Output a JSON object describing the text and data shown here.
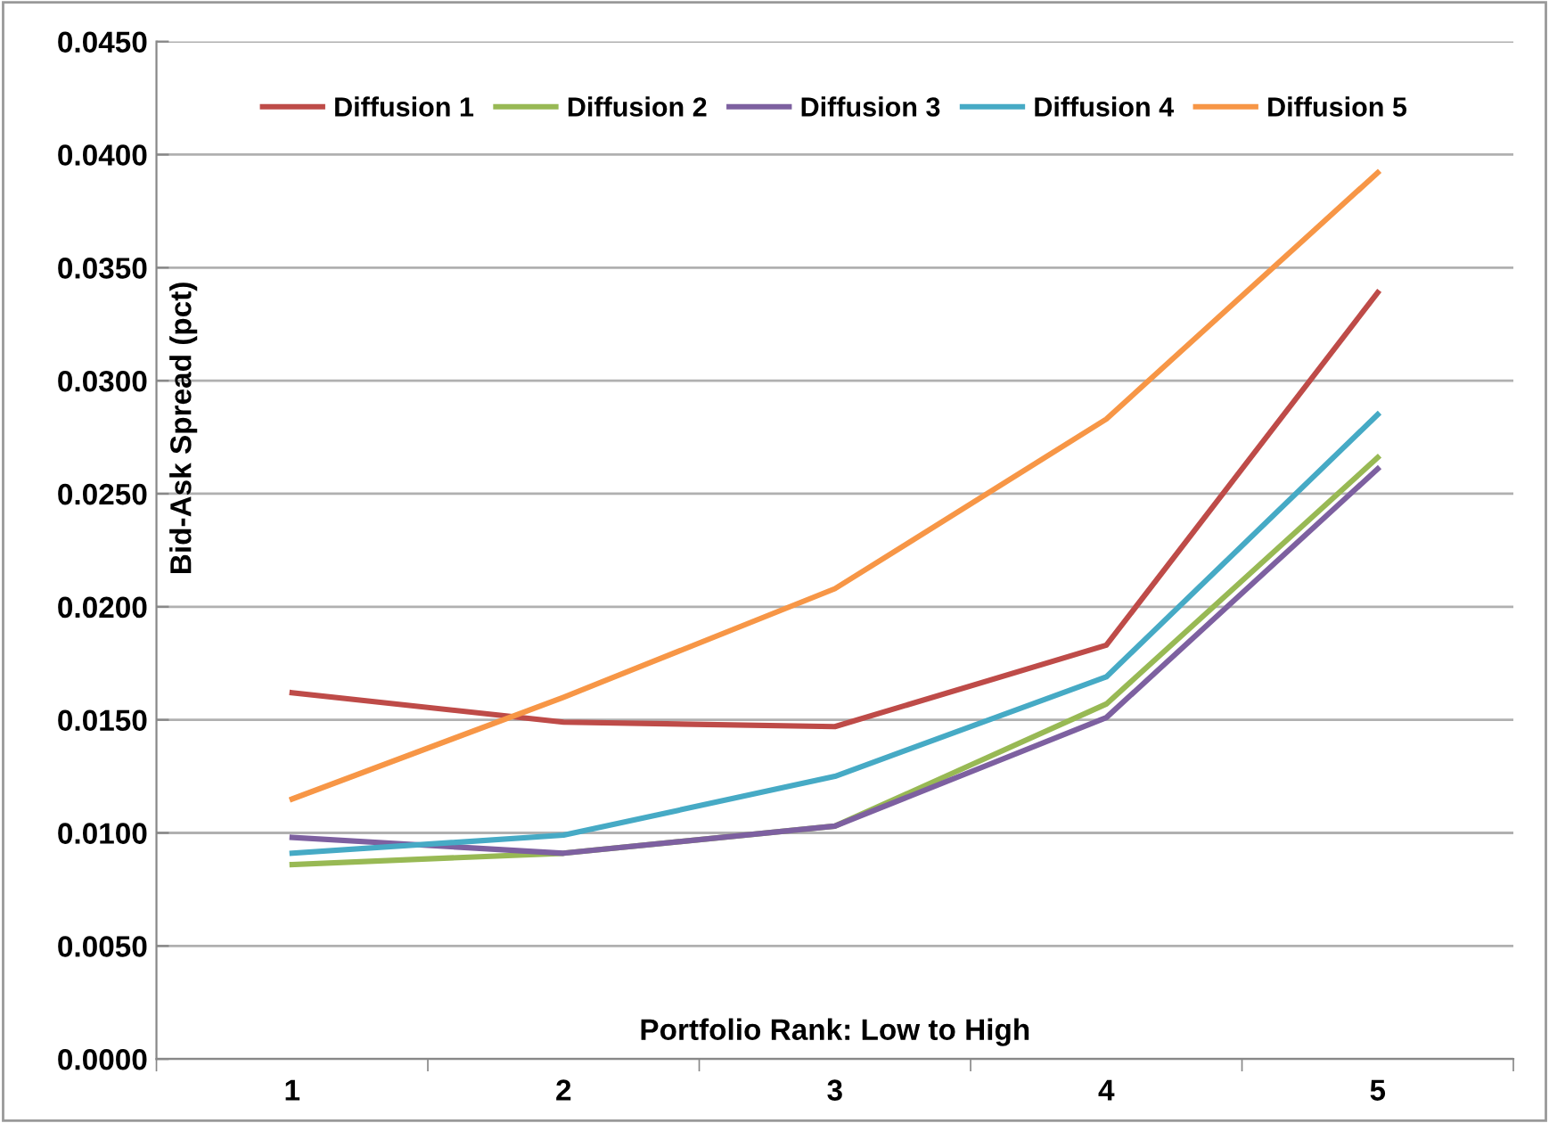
{
  "chart_data": {
    "type": "line",
    "xlabel": "Portfolio Rank: Low to High",
    "ylabel": "Bid-Ask Spread (pct)",
    "categories": [
      "1",
      "2",
      "3",
      "4",
      "5"
    ],
    "series": [
      {
        "name": "Diffusion 1",
        "color": "#be4b48",
        "values": [
          0.0162,
          0.0149,
          0.0147,
          0.0183,
          0.0339
        ]
      },
      {
        "name": "Diffusion 2",
        "color": "#98b954",
        "values": [
          0.0086,
          0.0091,
          0.0103,
          0.0157,
          0.0266
        ]
      },
      {
        "name": "Diffusion 3",
        "color": "#7d60a0",
        "values": [
          0.0098,
          0.0091,
          0.0103,
          0.0151,
          0.0261
        ]
      },
      {
        "name": "Diffusion 4",
        "color": "#46aac5",
        "values": [
          0.0091,
          0.0099,
          0.0125,
          0.0169,
          0.0285
        ]
      },
      {
        "name": "Diffusion 5",
        "color": "#f79646",
        "values": [
          0.0115,
          0.016,
          0.0208,
          0.0283,
          0.0392
        ]
      }
    ],
    "ylim": [
      0,
      0.045
    ],
    "yticks": [
      {
        "value": 0,
        "label": "0.0000"
      },
      {
        "value": 0.005,
        "label": "0.0050"
      },
      {
        "value": 0.01,
        "label": "0.0100"
      },
      {
        "value": 0.015,
        "label": "0.0150"
      },
      {
        "value": 0.02,
        "label": "0.0200"
      },
      {
        "value": 0.025,
        "label": "0.0250"
      },
      {
        "value": 0.03,
        "label": "0.0300"
      },
      {
        "value": 0.035,
        "label": "0.0350"
      },
      {
        "value": 0.04,
        "label": "0.0400"
      },
      {
        "value": 0.045,
        "label": "0.0450"
      }
    ],
    "grid": "y",
    "legend": "top",
    "marker": "none",
    "line_style": "solid"
  }
}
